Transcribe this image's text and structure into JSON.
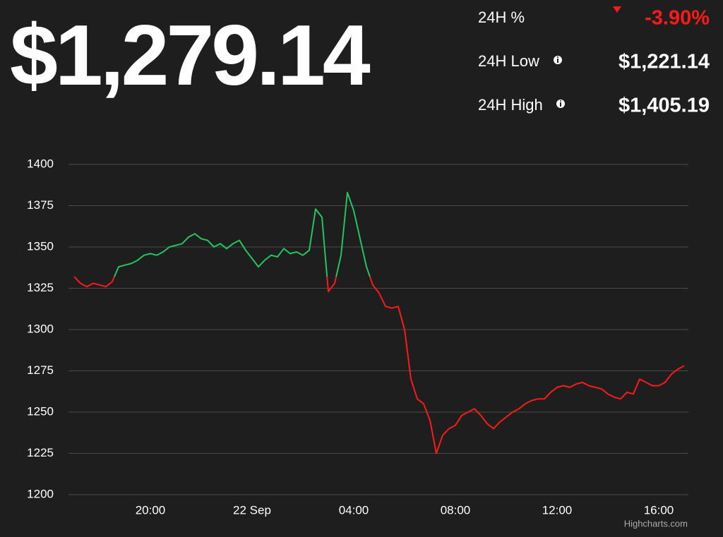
{
  "header": {
    "price": "$1,279.14",
    "stats": [
      {
        "label": "24H %",
        "value": "-3.90%"
      },
      {
        "label": "24H Low",
        "value": "$1,221.14"
      },
      {
        "label": "24H High",
        "value": "$1,405.19"
      }
    ]
  },
  "chart_data": {
    "type": "line",
    "categories": [
      null,
      null,
      null,
      null,
      null,
      null,
      null,
      null,
      null,
      null,
      null,
      null,
      "20:00",
      null,
      null,
      null,
      null,
      null,
      null,
      null,
      null,
      null,
      null,
      null,
      null,
      null,
      null,
      null,
      "22 Sep",
      null,
      null,
      null,
      null,
      null,
      null,
      null,
      null,
      null,
      null,
      null,
      null,
      null,
      null,
      null,
      "04:00",
      null,
      null,
      null,
      null,
      null,
      null,
      null,
      null,
      null,
      null,
      null,
      null,
      null,
      null,
      null,
      "08:00",
      null,
      null,
      null,
      null,
      null,
      null,
      null,
      null,
      null,
      null,
      null,
      null,
      null,
      null,
      null,
      "12:00",
      null,
      null,
      null,
      null,
      null,
      null,
      null,
      null,
      null,
      null,
      null,
      null,
      null,
      null,
      null,
      "16:00",
      null,
      null,
      null,
      null
    ],
    "values": [
      1332,
      1328,
      1326,
      1328,
      1327,
      1326,
      1329,
      1338,
      1339,
      1340,
      1342,
      1345,
      1346,
      1345,
      1347,
      1350,
      1351,
      1352,
      1356,
      1358,
      1355,
      1354,
      1350,
      1352,
      1349,
      1352,
      1354,
      1348,
      1343,
      1338,
      1342,
      1345,
      1344,
      1349,
      1346,
      1347,
      1345,
      1348,
      1373,
      1368,
      1323,
      1328,
      1345,
      1383,
      1372,
      1355,
      1338,
      1327,
      1322,
      1314,
      1313,
      1314,
      1300,
      1270,
      1258,
      1255,
      1245,
      1225,
      1236,
      1240,
      1242,
      1248,
      1250,
      1252,
      1248,
      1243,
      1240,
      1244,
      1247,
      1250,
      1252,
      1255,
      1257,
      1258,
      1258,
      1262,
      1265,
      1266,
      1265,
      1267,
      1268,
      1266,
      1265,
      1264,
      1261,
      1259,
      1258,
      1262,
      1261,
      1270,
      1268,
      1266,
      1266,
      1268,
      1273,
      1276,
      1278
    ],
    "color": "#22c55e",
    "negative_color": "#ff1a1a",
    "ylim": [
      1200,
      1400
    ],
    "yticks": [
      1200,
      1225,
      1250,
      1275,
      1300,
      1325,
      1350,
      1375,
      1400
    ],
    "grid": true,
    "credit": "Highcharts.com"
  }
}
